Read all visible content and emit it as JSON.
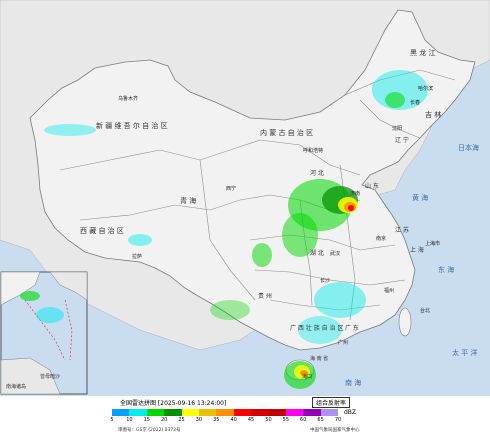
{
  "map": {
    "land_labels": [
      {
        "name": "region-xinjiang",
        "text": "新 疆 维 吾 尔 自 治 区"
      },
      {
        "name": "region-xizang",
        "text": "西 藏 自 治 区"
      },
      {
        "name": "region-qinghai",
        "text": "青 海"
      },
      {
        "name": "region-neimenggu",
        "text": "内 蒙 古 自 治 区"
      },
      {
        "name": "region-heilongjiang",
        "text": "黑 龙 江"
      },
      {
        "name": "region-jilin",
        "text": "吉 林"
      },
      {
        "name": "region-liaoning",
        "text": "辽 宁"
      },
      {
        "name": "region-hebei",
        "text": "河 北"
      },
      {
        "name": "region-shandong",
        "text": "山 东"
      },
      {
        "name": "region-jiangsu",
        "text": "江 苏"
      },
      {
        "name": "region-shanghai",
        "text": "上 海"
      },
      {
        "name": "region-hubei",
        "text": "湖 北"
      },
      {
        "name": "region-guizhou",
        "text": "贵 州"
      },
      {
        "name": "region-guangxi",
        "text": "广 西 壮 族 自 治 区"
      },
      {
        "name": "region-guangdong",
        "text": "广 东"
      },
      {
        "name": "region-hainan",
        "text": "海 南 省"
      },
      {
        "name": "city-urumqi",
        "text": "乌鲁木齐"
      },
      {
        "name": "city-lhasa",
        "text": "拉萨"
      },
      {
        "name": "city-xining",
        "text": "西宁"
      },
      {
        "name": "city-huhehaote",
        "text": "呼和浩特"
      },
      {
        "name": "city-haerbin",
        "text": "哈尔滨"
      },
      {
        "name": "city-changchun",
        "text": "长春"
      },
      {
        "name": "city-shenyang",
        "text": "沈阳"
      },
      {
        "name": "city-jinan",
        "text": "济南"
      },
      {
        "name": "city-nanjing",
        "text": "南京"
      },
      {
        "name": "city-shanghai",
        "text": "上海市"
      },
      {
        "name": "city-wuhan",
        "text": "武汉"
      },
      {
        "name": "city-changsha",
        "text": "长沙"
      },
      {
        "name": "city-guangzhou",
        "text": "广州"
      },
      {
        "name": "city-fuzhou",
        "text": "福州"
      },
      {
        "name": "city-taipei",
        "text": "台北"
      },
      {
        "name": "city-haikou",
        "text": "海口"
      }
    ],
    "sea_labels": [
      {
        "name": "sea-huanghai",
        "text": "黄 海"
      },
      {
        "name": "sea-donghai",
        "text": "东 海"
      },
      {
        "name": "sea-taipingyang",
        "text": "太 平 洋"
      },
      {
        "name": "sea-nanhai",
        "text": "南 海"
      },
      {
        "name": "sea-riben",
        "text": "日本海"
      }
    ],
    "inset_labels": [
      {
        "name": "inset-nanhai-islands",
        "text": "南海诸岛"
      },
      {
        "name": "inset-zengmu",
        "text": "曾母暗沙"
      }
    ]
  },
  "legend": {
    "title": "全国雷达拼图 [2025-09-16 13:24:00]",
    "product": "组合反射率",
    "unit": "dBZ",
    "ticks": [
      "5",
      "10",
      "15",
      "20",
      "25",
      "30",
      "35",
      "40",
      "45",
      "50",
      "55",
      "60",
      "65",
      "70"
    ],
    "colors": [
      "#01a0f6",
      "#00ecec",
      "#00d800",
      "#019000",
      "#ffff00",
      "#e7c000",
      "#ff9000",
      "#ff0000",
      "#d60000",
      "#c00000",
      "#ff00f0",
      "#9600b4",
      "#ad90f0"
    ],
    "approval": "审图号：GS京 (2022) 0372号",
    "credit": "中国气象局国家气象中心"
  },
  "colors": {
    "sea": "#c9dcf0",
    "land": "#f2f2f2",
    "province_border": "#8a8a8a"
  }
}
